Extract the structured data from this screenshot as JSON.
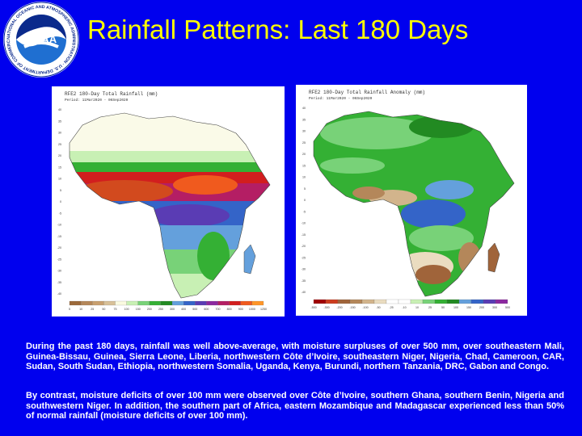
{
  "header": {
    "title": "Rainfall Patterns: Last 180 Days",
    "logo_text": "NATIONAL OCEANIC AND ATMOSPHERIC ADMINISTRATION · U.S. DEPARTMENT OF COMMERCE",
    "logo_center": "NOAA"
  },
  "maps": [
    {
      "title": "RFE2 180-Day Total Rainfall (mm)",
      "period": "Period: 11Mar2020 - 06Sep2020",
      "legend_colors": [
        "#9c6a3a",
        "#b4875a",
        "#c8a070",
        "#d8c098",
        "#fafae0",
        "#c8f0b4",
        "#78d278",
        "#34b034",
        "#228a22",
        "#64a0dc",
        "#3464c8",
        "#5a3cb4",
        "#8c28a0",
        "#b41e64",
        "#d21e1e",
        "#f05a1e",
        "#ff9628"
      ],
      "legend_ticks": [
        "5",
        "10",
        "25",
        "50",
        "75",
        "100",
        "150",
        "200",
        "250",
        "300",
        "400",
        "500",
        "600",
        "700",
        "800",
        "900",
        "1000",
        "1250"
      ]
    },
    {
      "title": "RFE2 180-Day Total Rainfall Anomaly (mm)",
      "period": "Period: 11Mar2020 - 06Sep2020",
      "legend_colors": [
        "#a00000",
        "#cc3c1e",
        "#a0643a",
        "#b4875a",
        "#d2b48c",
        "#eadcc0",
        "#ffffff",
        "#ffffff",
        "#c8f0b4",
        "#78d278",
        "#34b034",
        "#228a22",
        "#64a0dc",
        "#3464c8",
        "#5a3cb4",
        "#8c28a0"
      ],
      "legend_ticks": [
        "-500",
        "-300",
        "-200",
        "-150",
        "-100",
        "-50",
        "-25",
        "-10",
        "10",
        "25",
        "50",
        "100",
        "150",
        "200",
        "300",
        "500"
      ]
    }
  ],
  "lat_ticks": [
    "40",
    "35",
    "30",
    "25",
    "20",
    "15",
    "10",
    "5",
    "0",
    "-5",
    "-10",
    "-15",
    "-20",
    "-25",
    "-30",
    "-35",
    "-40"
  ],
  "colors": {
    "background": "#0000ee",
    "title": "#ffff00",
    "body_text": "#ffffff"
  },
  "paragraphs": {
    "p1": "During the past 180 days, rainfall was well above-average, with moisture surpluses of over 500 mm, over southeastern Mali, Guinea-Bissau, Guinea, Sierra Leone, Liberia, northwestern Côte d’Ivoire, southeastern Niger, Nigeria, Chad, Cameroon, CAR, Sudan, South Sudan, Ethiopia, northwestern Somalia, Uganda, Kenya, Burundi, northern Tanzania, DRC, Gabon and Congo.",
    "p2": "By contrast, moisture deficits of over 100 mm were observed over Côte d’Ivoire, southern Ghana, southern Benin, Nigeria and southwestern Niger. In addition, the southern part of Africa, eastern Mozambique and Madagascar experienced less than 50% of normal rainfall (moisture deficits of over 100 mm)."
  }
}
